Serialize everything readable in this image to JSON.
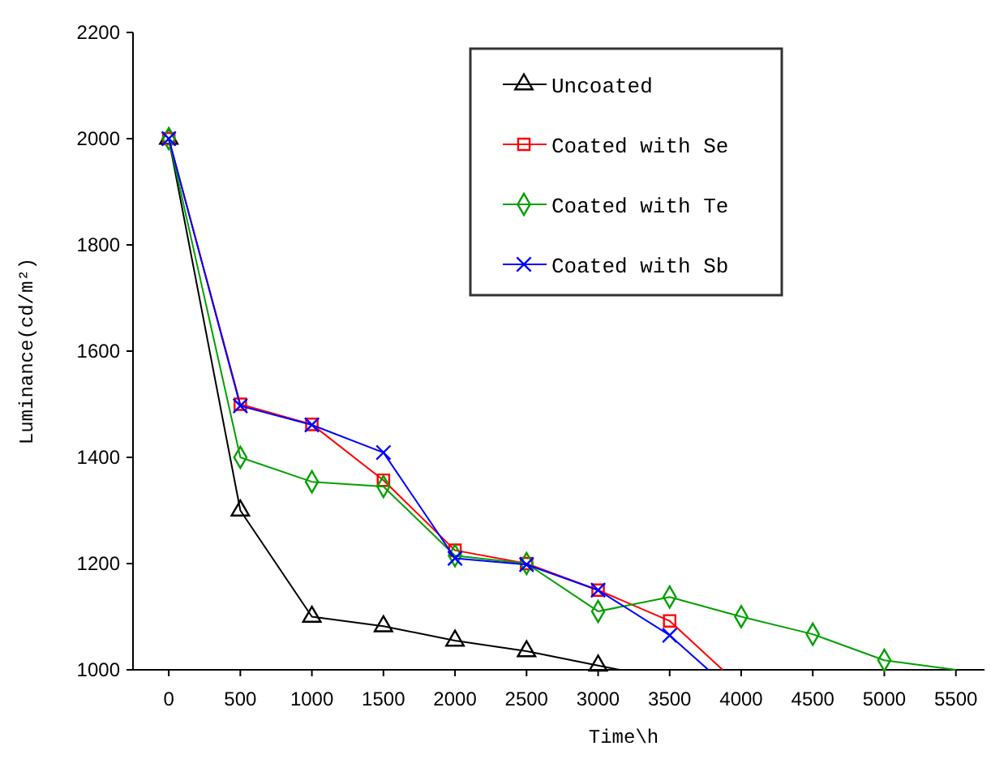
{
  "chart_data": {
    "type": "line",
    "xlabel": "Time\\h",
    "ylabel": "Luminance(cd/m²)",
    "xlim": [
      -250,
      5700
    ],
    "ylim": [
      1000,
      2200
    ],
    "xticks": [
      0,
      500,
      1000,
      1500,
      2000,
      2500,
      3000,
      3500,
      4000,
      4500,
      5000,
      5500
    ],
    "yticks": [
      1000,
      1200,
      1400,
      1600,
      1800,
      2000,
      2200
    ],
    "grid": false,
    "legend": "top right",
    "series": [
      {
        "name": "Uncoated",
        "color": "#000000",
        "marker": "triangle",
        "x": [
          0,
          500,
          1000,
          1500,
          2000,
          2500,
          3000,
          3150
        ],
        "values": [
          2000,
          1300,
          1100,
          1082,
          1055,
          1035,
          1008,
          1000
        ]
      },
      {
        "name": "Coated with Se",
        "color": "#ff0000",
        "marker": "square",
        "x": [
          0,
          500,
          1000,
          1500,
          2000,
          2500,
          3000,
          3500,
          3870
        ],
        "values": [
          2000,
          1500,
          1462,
          1357,
          1225,
          1200,
          1150,
          1092,
          1000
        ]
      },
      {
        "name": "Coated with Te",
        "color": "#00a000",
        "marker": "diamond",
        "x": [
          0,
          500,
          1000,
          1500,
          2000,
          2500,
          3000,
          3500,
          4000,
          4500,
          5000,
          5500
        ],
        "values": [
          2000,
          1400,
          1354,
          1345,
          1215,
          1200,
          1110,
          1137,
          1100,
          1067,
          1018,
          1000
        ]
      },
      {
        "name": "Coated with Sb",
        "color": "#0000ff",
        "marker": "cross",
        "x": [
          0,
          500,
          1000,
          1500,
          2000,
          2500,
          3000,
          3500,
          3770
        ],
        "values": [
          2000,
          1497,
          1461,
          1409,
          1210,
          1198,
          1150,
          1065,
          1000
        ]
      }
    ]
  }
}
